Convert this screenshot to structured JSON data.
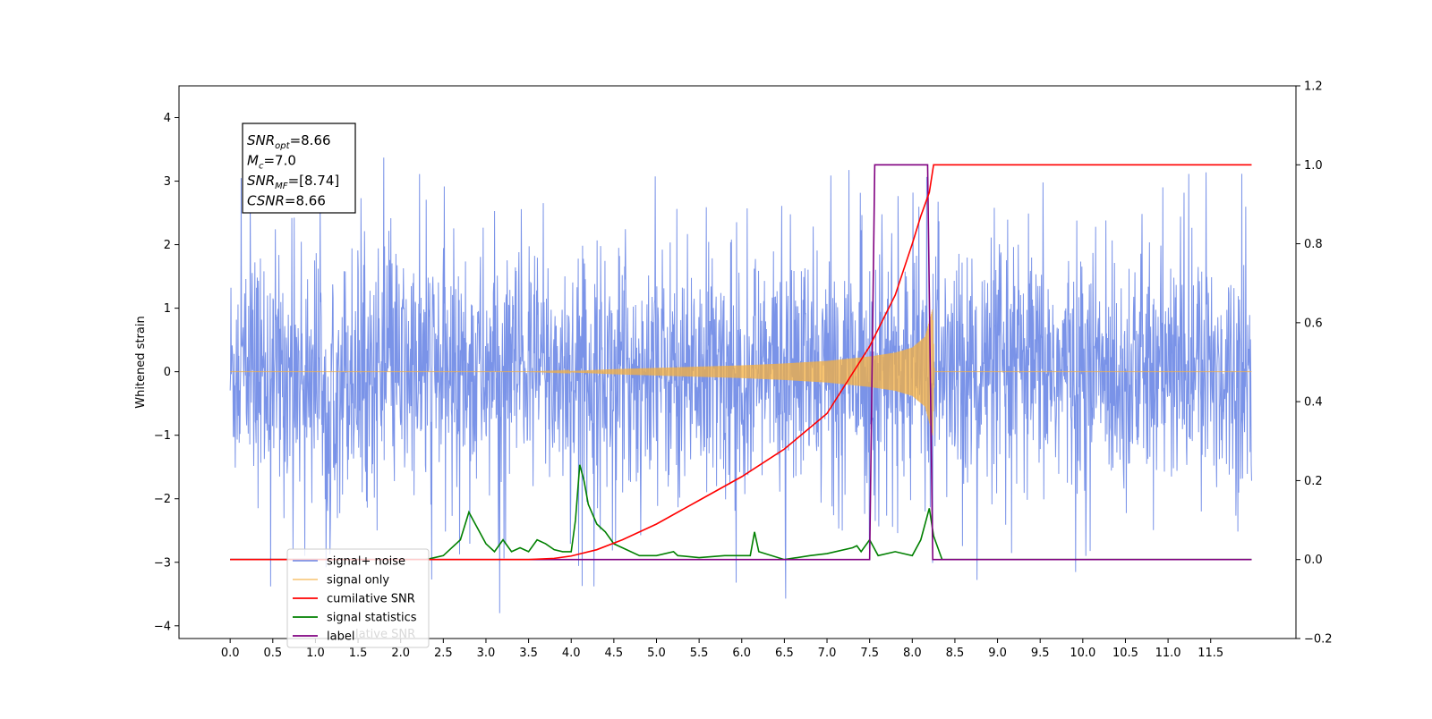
{
  "chart_data": {
    "type": "line",
    "title": "",
    "xlabel": "",
    "ylabel": "Whitened strain",
    "xlim": [
      -0.6,
      12.5
    ],
    "ylim_left": [
      -4.2,
      4.5
    ],
    "ylim_right": [
      -0.2,
      1.2
    ],
    "x_ticks": [
      0.0,
      0.5,
      1.0,
      1.5,
      2.0,
      2.5,
      3.0,
      3.5,
      4.0,
      4.5,
      5.0,
      5.5,
      6.0,
      6.5,
      7.0,
      7.5,
      8.0,
      8.5,
      9.0,
      9.5,
      10.0,
      10.5,
      11.0,
      11.5
    ],
    "x_tick_labels": [
      "0.0",
      "0.5",
      "1.0",
      "1.5",
      "2.0",
      "2.5",
      "3.0",
      "3.5",
      "4.0",
      "4.5",
      "5.0",
      "5.5",
      "6.0",
      "6.5",
      "7.0",
      "7.5",
      "8.0",
      "8.5",
      "9.0",
      "9.5",
      "10.0",
      "10.5",
      "11.0",
      "11.5"
    ],
    "y_left_ticks": [
      -4,
      -3,
      -2,
      -1,
      0,
      1,
      2,
      3,
      4
    ],
    "y_left_tick_labels": [
      "−4",
      "−3",
      "−2",
      "−1",
      "0",
      "1",
      "2",
      "3",
      "4"
    ],
    "y_right_ticks": [
      -0.2,
      0.0,
      0.2,
      0.4,
      0.6,
      0.8,
      1.0,
      1.2
    ],
    "y_right_tick_labels": [
      "−0.2",
      "0.0",
      "0.2",
      "0.4",
      "0.6",
      "0.8",
      "1.0",
      "1.2"
    ],
    "grid": false,
    "legend_position": "lower-left",
    "annotation": {
      "lines": [
        {
          "base": "SNR",
          "sub": "opt",
          "value": "=8.66"
        },
        {
          "base": "M",
          "sub": "c",
          "value": "=7.0"
        },
        {
          "base": "SNR",
          "sub": "MF",
          "value": "=[8.74]"
        },
        {
          "base": "CSNR",
          "sub": "",
          "value": "=8.66"
        }
      ]
    },
    "noise_band": {
      "x_range": [
        0.0,
        11.98
      ],
      "typical_amplitude": 1.6,
      "spike_max": 4.1,
      "spike_min": -3.8
    },
    "series": [
      {
        "name": "signal+ noise",
        "axis": "left",
        "color": "#6b87e6",
        "kind": "noise_band"
      },
      {
        "name": "signal only",
        "axis": "left",
        "color": "#f5b040",
        "kind": "chirp",
        "envelope": {
          "x": [
            0.0,
            3.5,
            4.0,
            4.5,
            5.0,
            5.5,
            6.0,
            6.5,
            7.0,
            7.5,
            7.8,
            8.0,
            8.15,
            8.24,
            8.26,
            11.98
          ],
          "y": [
            0.0,
            0.0,
            0.01,
            0.04,
            0.06,
            0.08,
            0.1,
            0.13,
            0.17,
            0.24,
            0.3,
            0.38,
            0.55,
            1.0,
            0.0,
            0.0
          ]
        }
      },
      {
        "name": "cumilative SNR",
        "axis": "right",
        "color": "#ff0000",
        "x": [
          0.0,
          3.5,
          3.8,
          4.0,
          4.3,
          4.6,
          5.0,
          5.5,
          6.0,
          6.5,
          7.0,
          7.5,
          7.8,
          8.0,
          8.1,
          8.2,
          8.25,
          11.98
        ],
        "y": [
          0.0,
          0.0,
          0.003,
          0.009,
          0.025,
          0.05,
          0.09,
          0.15,
          0.21,
          0.28,
          0.37,
          0.54,
          0.67,
          0.8,
          0.87,
          0.93,
          1.0,
          1.0
        ]
      },
      {
        "name": "signal statistics",
        "axis": "right",
        "color": "#008000",
        "x": [
          0.0,
          2.3,
          2.5,
          2.6,
          2.7,
          2.8,
          2.85,
          2.9,
          3.0,
          3.1,
          3.2,
          3.3,
          3.4,
          3.5,
          3.6,
          3.7,
          3.8,
          3.9,
          4.0,
          4.05,
          4.1,
          4.15,
          4.2,
          4.3,
          4.4,
          4.5,
          4.6,
          4.8,
          5.0,
          5.2,
          5.25,
          5.5,
          5.8,
          6.1,
          6.15,
          6.2,
          6.5,
          6.8,
          7.0,
          7.3,
          7.35,
          7.4,
          7.5,
          7.55,
          7.6,
          7.8,
          8.0,
          8.1,
          8.2,
          8.25,
          8.35,
          11.98
        ],
        "y": [
          0.0,
          0.0,
          0.01,
          0.03,
          0.05,
          0.12,
          0.1,
          0.08,
          0.04,
          0.02,
          0.05,
          0.02,
          0.03,
          0.02,
          0.05,
          0.04,
          0.025,
          0.02,
          0.02,
          0.1,
          0.24,
          0.2,
          0.14,
          0.09,
          0.07,
          0.04,
          0.03,
          0.01,
          0.01,
          0.02,
          0.01,
          0.005,
          0.01,
          0.01,
          0.07,
          0.02,
          0.0,
          0.01,
          0.015,
          0.03,
          0.035,
          0.02,
          0.05,
          0.03,
          0.01,
          0.02,
          0.01,
          0.05,
          0.13,
          0.06,
          0.0,
          0.0
        ]
      },
      {
        "name": "label",
        "axis": "right",
        "color": "#800080",
        "x": [
          0.0,
          7.5,
          7.56,
          8.18,
          8.24,
          11.98
        ],
        "y": [
          0.0,
          0.0,
          1.0,
          1.0,
          0.0,
          0.0
        ]
      }
    ],
    "legend_overlap_text": "lative SNR"
  }
}
